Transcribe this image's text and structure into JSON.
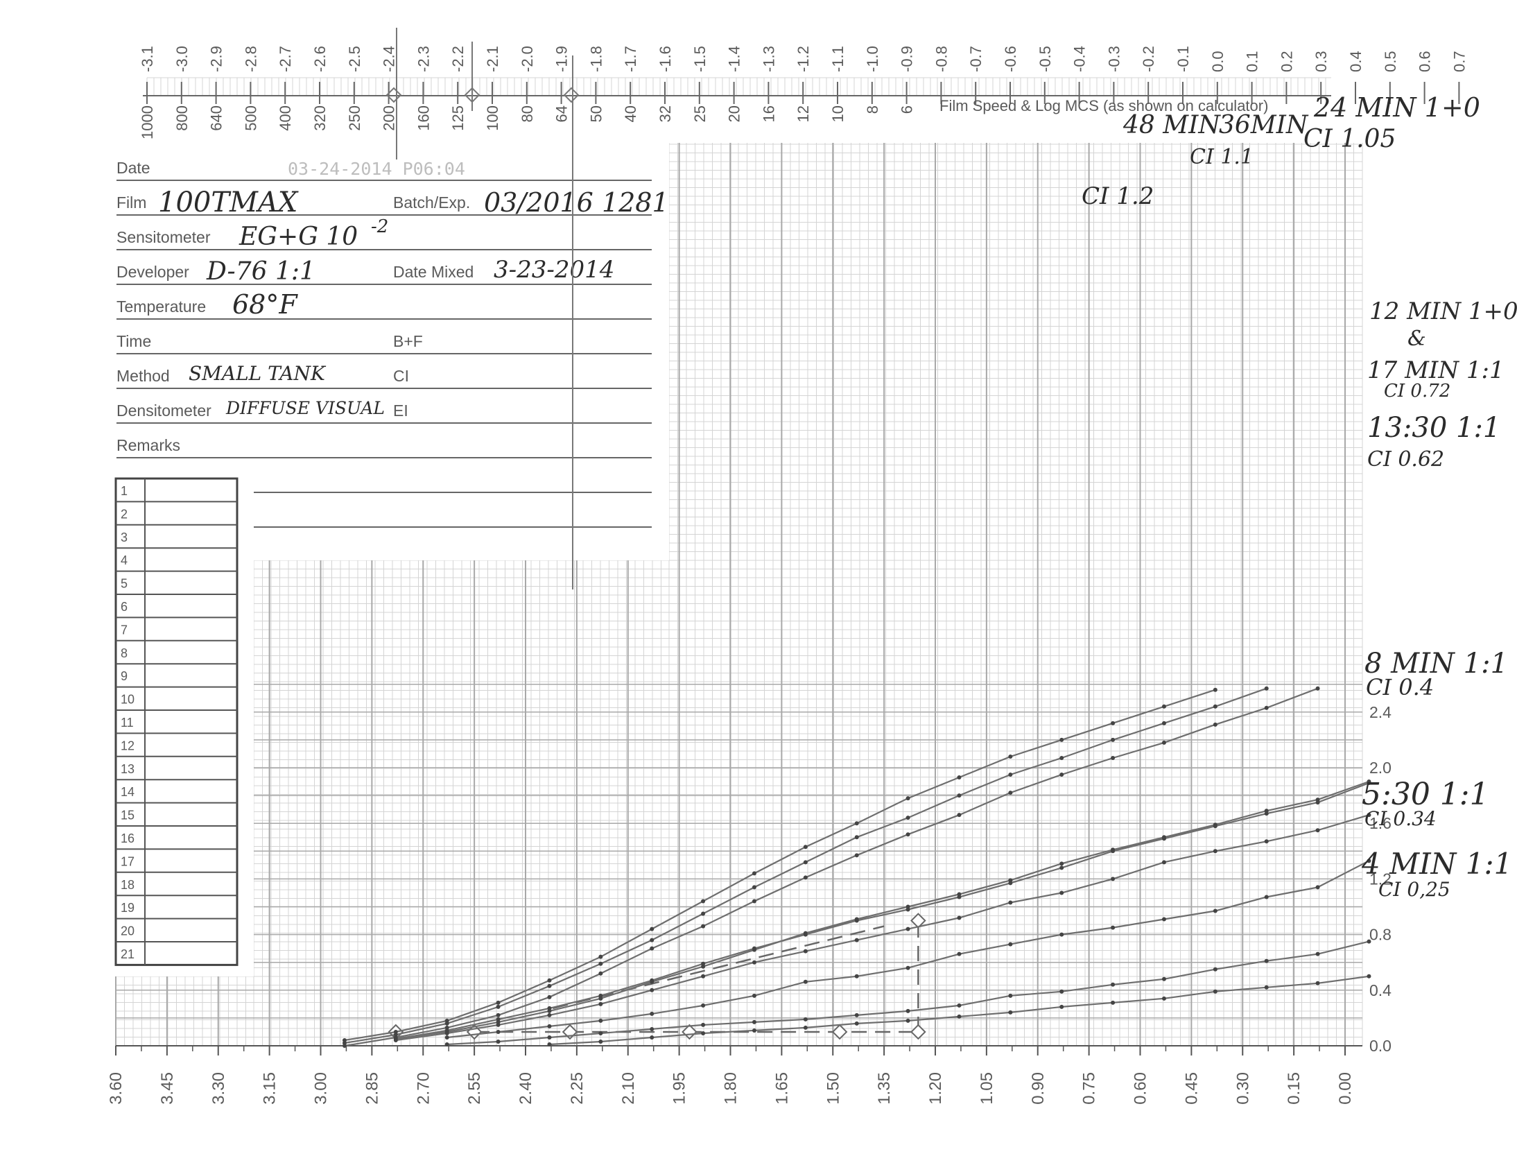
{
  "form": {
    "date_label": "Date",
    "date_stamp": "03-24-2014 P06:04",
    "film_label": "Film",
    "film_value": "100TMAX",
    "batch_label": "Batch/Exp.",
    "batch_value": "03/2016 1281",
    "sensitometer_label": "Sensitometer",
    "sensitometer_value": "EG+G 10",
    "sensitometer_exp": "-2",
    "developer_label": "Developer",
    "developer_value": "D-76 1:1",
    "date_mixed_label": "Date Mixed",
    "date_mixed_value": "3-23-2014",
    "temperature_label": "Temperature",
    "temperature_value": "68°F",
    "time_label": "Time",
    "bf_label": "B+F",
    "method_label": "Method",
    "method_value": "SMALL TANK",
    "ci_label": "CI",
    "densitometer_label": "Densitometer",
    "densitometer_value": "DIFFUSE VISUAL",
    "ei_label": "EI",
    "remarks_label": "Remarks",
    "rows": [
      "1",
      "2",
      "3",
      "4",
      "5",
      "6",
      "7",
      "8",
      "9",
      "10",
      "11",
      "12",
      "13",
      "14",
      "15",
      "16",
      "17",
      "18",
      "19",
      "20",
      "21"
    ]
  },
  "chart_data": {
    "type": "line",
    "top_axis_label": "Film Speed & Log MCS (as shown on calculator)",
    "top_log_ticks": [
      "-3.1",
      "-3.0",
      "-2.9",
      "-2.8",
      "-2.7",
      "-2.6",
      "-2.5",
      "-2.4",
      "-2.3",
      "-2.2",
      "-2.1",
      "-2.0",
      "-1.9",
      "-1.8",
      "-1.7",
      "-1.6",
      "-1.5",
      "-1.4",
      "-1.3",
      "-1.2",
      "-1.1",
      "-1.0",
      "-0.9",
      "-0.8",
      "-0.7",
      "-0.6",
      "-0.5",
      "-0.4",
      "-0.3",
      "-0.2",
      "-0.1",
      "0.0",
      "0.1",
      "0.2",
      "0.3",
      "0.4",
      "0.5",
      "0.6",
      "0.7"
    ],
    "top_speed_ticks": [
      "1000",
      "800",
      "640",
      "500",
      "400",
      "320",
      "250",
      "200",
      "160",
      "125",
      "100",
      "80",
      "64",
      "50",
      "40",
      "32",
      "25",
      "20",
      "16",
      "12",
      "10",
      "8",
      "6"
    ],
    "x_ticks": [
      "3.60",
      "3.45",
      "3.30",
      "3.15",
      "3.00",
      "2.85",
      "2.70",
      "2.55",
      "2.40",
      "2.25",
      "2.10",
      "1.95",
      "1.80",
      "1.65",
      "1.50",
      "1.35",
      "1.20",
      "1.05",
      "0.90",
      "0.75",
      "0.60",
      "0.45",
      "0.30",
      "0.15",
      "0.00"
    ],
    "x_range": [
      3.6,
      0.0
    ],
    "y_ticks": [
      "0.0",
      "0.4",
      "0.8",
      "1.2",
      "1.6",
      "2.0",
      "2.4"
    ],
    "y_range": [
      0.0,
      2.6
    ],
    "series": [
      {
        "name": "48 MIN",
        "points": [
          [
            2.93,
            0.04
          ],
          [
            2.78,
            0.1
          ],
          [
            2.63,
            0.18
          ],
          [
            2.48,
            0.31
          ],
          [
            2.33,
            0.47
          ],
          [
            2.18,
            0.64
          ],
          [
            2.03,
            0.84
          ],
          [
            1.88,
            1.04
          ],
          [
            1.73,
            1.24
          ],
          [
            1.58,
            1.43
          ],
          [
            1.43,
            1.6
          ],
          [
            1.28,
            1.78
          ],
          [
            1.13,
            1.93
          ],
          [
            0.98,
            2.08
          ],
          [
            0.83,
            2.2
          ],
          [
            0.68,
            2.32
          ],
          [
            0.53,
            2.44
          ],
          [
            0.38,
            2.56
          ]
        ]
      },
      {
        "name": "36 MIN",
        "points": [
          [
            2.93,
            0.02
          ],
          [
            2.78,
            0.08
          ],
          [
            2.63,
            0.16
          ],
          [
            2.48,
            0.28
          ],
          [
            2.33,
            0.43
          ],
          [
            2.18,
            0.59
          ],
          [
            2.03,
            0.76
          ],
          [
            1.88,
            0.95
          ],
          [
            1.73,
            1.14
          ],
          [
            1.58,
            1.32
          ],
          [
            1.43,
            1.5
          ],
          [
            1.28,
            1.64
          ],
          [
            1.13,
            1.8
          ],
          [
            0.98,
            1.95
          ],
          [
            0.83,
            2.07
          ],
          [
            0.68,
            2.2
          ],
          [
            0.53,
            2.32
          ],
          [
            0.38,
            2.44
          ],
          [
            0.23,
            2.57
          ]
        ]
      },
      {
        "name": "24 MIN",
        "points": [
          [
            2.93,
            0.0
          ],
          [
            2.78,
            0.06
          ],
          [
            2.63,
            0.13
          ],
          [
            2.48,
            0.22
          ],
          [
            2.33,
            0.35
          ],
          [
            2.18,
            0.52
          ],
          [
            2.03,
            0.7
          ],
          [
            1.88,
            0.86
          ],
          [
            1.73,
            1.04
          ],
          [
            1.58,
            1.21
          ],
          [
            1.43,
            1.37
          ],
          [
            1.28,
            1.52
          ],
          [
            1.13,
            1.66
          ],
          [
            0.98,
            1.82
          ],
          [
            0.83,
            1.95
          ],
          [
            0.68,
            2.07
          ],
          [
            0.53,
            2.18
          ],
          [
            0.38,
            2.31
          ],
          [
            0.23,
            2.43
          ],
          [
            0.08,
            2.57
          ]
        ]
      },
      {
        "name": "12 MIN",
        "points": [
          [
            2.78,
            0.05
          ],
          [
            2.63,
            0.1
          ],
          [
            2.48,
            0.17
          ],
          [
            2.33,
            0.25
          ],
          [
            2.18,
            0.34
          ],
          [
            2.03,
            0.46
          ],
          [
            1.88,
            0.57
          ],
          [
            1.73,
            0.69
          ],
          [
            1.58,
            0.81
          ],
          [
            1.43,
            0.91
          ],
          [
            1.28,
            1.0
          ],
          [
            1.13,
            1.09
          ],
          [
            0.98,
            1.19
          ],
          [
            0.83,
            1.31
          ],
          [
            0.68,
            1.41
          ],
          [
            0.53,
            1.5
          ],
          [
            0.38,
            1.59
          ],
          [
            0.23,
            1.69
          ],
          [
            0.08,
            1.77
          ],
          [
            -0.07,
            1.9
          ]
        ]
      },
      {
        "name": "17 MIN",
        "points": [
          [
            2.78,
            0.05
          ],
          [
            2.63,
            0.11
          ],
          [
            2.48,
            0.19
          ],
          [
            2.33,
            0.27
          ],
          [
            2.18,
            0.36
          ],
          [
            2.03,
            0.47
          ],
          [
            1.88,
            0.59
          ],
          [
            1.73,
            0.7
          ],
          [
            1.58,
            0.8
          ],
          [
            1.43,
            0.9
          ],
          [
            1.28,
            0.98
          ],
          [
            1.13,
            1.07
          ],
          [
            0.98,
            1.17
          ],
          [
            0.83,
            1.28
          ],
          [
            0.68,
            1.4
          ],
          [
            0.53,
            1.49
          ],
          [
            0.38,
            1.58
          ],
          [
            0.23,
            1.67
          ],
          [
            0.08,
            1.75
          ],
          [
            -0.07,
            1.89
          ]
        ]
      },
      {
        "name": "13:30",
        "points": [
          [
            2.78,
            0.04
          ],
          [
            2.63,
            0.09
          ],
          [
            2.48,
            0.15
          ],
          [
            2.33,
            0.22
          ],
          [
            2.18,
            0.3
          ],
          [
            2.03,
            0.4
          ],
          [
            1.88,
            0.5
          ],
          [
            1.73,
            0.6
          ],
          [
            1.58,
            0.68
          ],
          [
            1.43,
            0.76
          ],
          [
            1.28,
            0.84
          ],
          [
            1.13,
            0.92
          ],
          [
            0.98,
            1.03
          ],
          [
            0.83,
            1.1
          ],
          [
            0.68,
            1.2
          ],
          [
            0.53,
            1.32
          ],
          [
            0.38,
            1.4
          ],
          [
            0.23,
            1.47
          ],
          [
            0.08,
            1.55
          ],
          [
            -0.07,
            1.66
          ]
        ]
      },
      {
        "name": "8 MIN",
        "points": [
          [
            2.63,
            0.06
          ],
          [
            2.48,
            0.1
          ],
          [
            2.33,
            0.14
          ],
          [
            2.18,
            0.18
          ],
          [
            2.03,
            0.23
          ],
          [
            1.88,
            0.29
          ],
          [
            1.73,
            0.36
          ],
          [
            1.58,
            0.46
          ],
          [
            1.43,
            0.5
          ],
          [
            1.28,
            0.56
          ],
          [
            1.13,
            0.66
          ],
          [
            0.98,
            0.73
          ],
          [
            0.83,
            0.8
          ],
          [
            0.68,
            0.85
          ],
          [
            0.53,
            0.91
          ],
          [
            0.38,
            0.97
          ],
          [
            0.23,
            1.07
          ],
          [
            0.08,
            1.14
          ],
          [
            -0.07,
            1.33
          ]
        ]
      },
      {
        "name": "5:30",
        "points": [
          [
            2.63,
            0.01
          ],
          [
            2.48,
            0.03
          ],
          [
            2.33,
            0.06
          ],
          [
            2.18,
            0.09
          ],
          [
            2.03,
            0.12
          ],
          [
            1.88,
            0.15
          ],
          [
            1.73,
            0.17
          ],
          [
            1.58,
            0.19
          ],
          [
            1.43,
            0.22
          ],
          [
            1.28,
            0.25
          ],
          [
            1.13,
            0.29
          ],
          [
            0.98,
            0.36
          ],
          [
            0.83,
            0.39
          ],
          [
            0.68,
            0.44
          ],
          [
            0.53,
            0.48
          ],
          [
            0.38,
            0.55
          ],
          [
            0.23,
            0.61
          ],
          [
            0.08,
            0.66
          ],
          [
            -0.07,
            0.75
          ]
        ]
      },
      {
        "name": "4 MIN",
        "points": [
          [
            2.33,
            0.01
          ],
          [
            2.18,
            0.03
          ],
          [
            2.03,
            0.06
          ],
          [
            1.88,
            0.09
          ],
          [
            1.73,
            0.11
          ],
          [
            1.58,
            0.13
          ],
          [
            1.43,
            0.16
          ],
          [
            1.28,
            0.18
          ],
          [
            1.13,
            0.21
          ],
          [
            0.98,
            0.24
          ],
          [
            0.83,
            0.28
          ],
          [
            0.68,
            0.31
          ],
          [
            0.53,
            0.34
          ],
          [
            0.38,
            0.39
          ],
          [
            0.23,
            0.42
          ],
          [
            0.08,
            0.45
          ],
          [
            -0.07,
            0.5
          ]
        ]
      }
    ],
    "annotations": [
      {
        "text": "24 MIN 1+0",
        "rows": [
          "24 MIN 1+0",
          "CI 1.05"
        ]
      },
      {
        "text": "48 MIN"
      },
      {
        "text": "36MIN"
      },
      {
        "text": "CI 1.1"
      },
      {
        "text": "CI 1.2"
      },
      {
        "rows": [
          "12 MIN 1+0",
          "&",
          "17 MIN 1:1",
          "CI 0.72"
        ]
      },
      {
        "rows": [
          "13:30 1:1",
          "CI 0.62"
        ]
      },
      {
        "rows": [
          "8 MIN 1:1",
          "CI 0.4"
        ]
      },
      {
        "rows": [
          "5:30 1:1",
          "CI 0.34"
        ]
      },
      {
        "rows": [
          "4 MIN 1:1",
          "CI 0,25"
        ]
      }
    ],
    "grid": true,
    "colors": {
      "grid_fine": "#d4d4d4",
      "grid_major": "#a8a8a8",
      "curve": "#6e6e6e",
      "ink": "#2b2b2b"
    }
  }
}
